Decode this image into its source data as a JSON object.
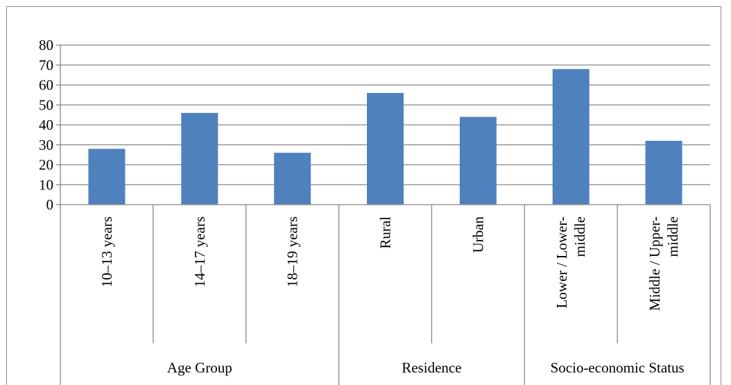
{
  "chart_data": {
    "type": "bar",
    "title": "",
    "xlabel": "",
    "ylabel": "",
    "ylim": [
      0,
      80
    ],
    "yticks": [
      0,
      10,
      20,
      30,
      40,
      50,
      60,
      70,
      80
    ],
    "grid": true,
    "legend": "none",
    "bar_color": "#4f81bd",
    "categories": [
      {
        "label": [
          "10–13 years"
        ],
        "group": "Age Group"
      },
      {
        "label": [
          "14–17 years"
        ],
        "group": "Age Group"
      },
      {
        "label": [
          "18–19 years"
        ],
        "group": "Age Group"
      },
      {
        "label": [
          "Rural"
        ],
        "group": "Residence"
      },
      {
        "label": [
          "Urban"
        ],
        "group": "Residence"
      },
      {
        "label": [
          "Lower / Lower-",
          "middle"
        ],
        "group": "Socio-economic Status"
      },
      {
        "label": [
          "Middle / Upper-",
          "middle"
        ],
        "group": "Socio-economic Status"
      }
    ],
    "values": [
      28,
      46,
      26,
      56,
      44,
      68,
      32
    ],
    "groups": [
      "Age Group",
      "Residence",
      "Socio-economic Status"
    ]
  }
}
